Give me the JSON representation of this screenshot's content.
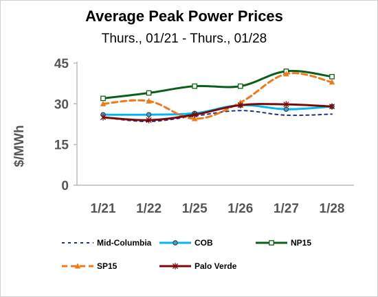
{
  "chart_data": {
    "type": "line",
    "title": "Average Peak Power Prices",
    "subtitle": "Thurs., 01/21 - Thurs., 01/28",
    "ylabel": "$/MWh",
    "xlabel": "",
    "categories": [
      "1/21",
      "1/22",
      "1/25",
      "1/26",
      "1/27",
      "1/28"
    ],
    "ylim": [
      0,
      45
    ],
    "yticks": [
      0,
      15,
      30,
      45
    ],
    "grid": false,
    "legend_position": "bottom",
    "series": [
      {
        "name": "Mid-Columbia",
        "values": [
          25,
          23.5,
          25.5,
          27.5,
          25.8,
          26.2
        ],
        "color": "#1f2f8f",
        "style": "dotted",
        "marker": "none"
      },
      {
        "name": "COB",
        "values": [
          26,
          26,
          26.5,
          29.5,
          28,
          29
        ],
        "color": "#00b7f0",
        "style": "solid",
        "marker": "circle"
      },
      {
        "name": "NP15",
        "values": [
          32,
          34,
          36.5,
          36.5,
          42,
          40
        ],
        "color": "#0a5f1a",
        "style": "solid",
        "marker": "square"
      },
      {
        "name": "SP15",
        "values": [
          30,
          31,
          24.5,
          30.5,
          41,
          38
        ],
        "color": "#f07a1a",
        "style": "dashed",
        "marker": "triangle"
      },
      {
        "name": "Palo Verde",
        "values": [
          25,
          24,
          26,
          29.5,
          29.8,
          29
        ],
        "color": "#7a0a0a",
        "style": "solid",
        "marker": "star"
      }
    ]
  }
}
